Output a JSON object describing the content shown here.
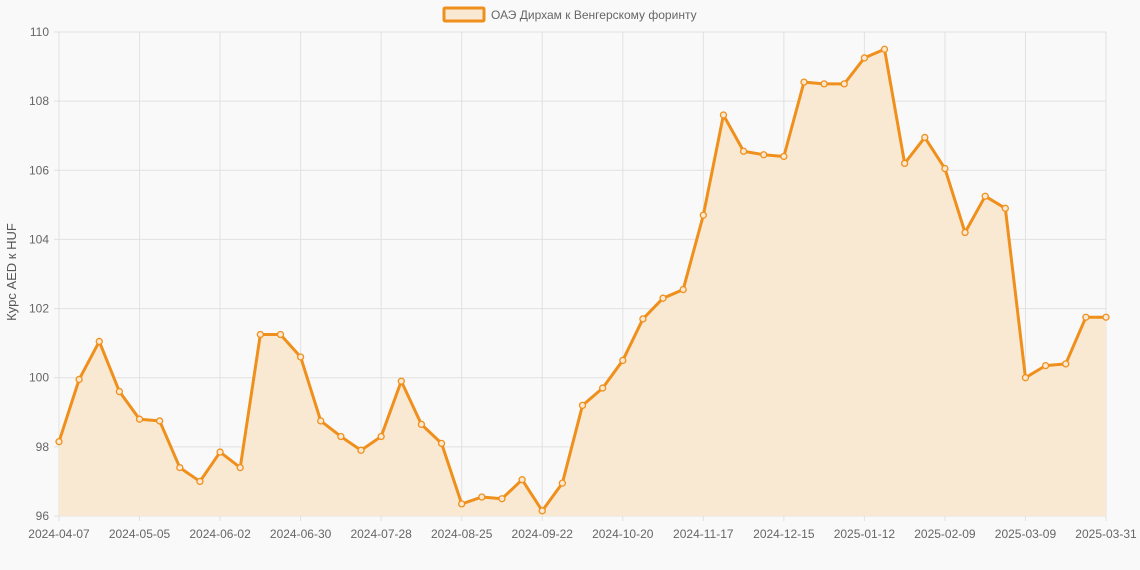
{
  "chart_data": {
    "type": "area",
    "title": "",
    "xlabel": "",
    "ylabel": "Курс AED к HUF",
    "legend": {
      "position": "top",
      "entries": [
        "ОАЭ Дирхам к Венгерскому форинту"
      ]
    },
    "grid": true,
    "ylim": [
      96,
      110
    ],
    "y_ticks": [
      96,
      98,
      100,
      102,
      104,
      106,
      108,
      110
    ],
    "x_tick_labels": [
      "2024-04-07",
      "2024-05-05",
      "2024-06-02",
      "2024-06-30",
      "2024-07-28",
      "2024-08-25",
      "2024-09-22",
      "2024-10-20",
      "2024-11-17",
      "2024-12-15",
      "2025-01-12",
      "2025-02-09",
      "2025-03-09",
      "2025-03-31"
    ],
    "x_tick_positions": [
      0,
      4,
      8,
      12,
      16,
      20,
      24,
      28,
      32,
      36,
      40,
      44,
      48,
      52
    ],
    "series": [
      {
        "name": "ОАЭ Дирхам к Венгерскому форинту",
        "color": "#f0901c",
        "fill": "#f9e8d2",
        "values": [
          98.15,
          99.95,
          101.05,
          99.6,
          98.8,
          98.75,
          97.4,
          97.0,
          97.85,
          97.4,
          101.25,
          101.25,
          100.6,
          98.75,
          98.3,
          97.9,
          98.3,
          99.9,
          98.65,
          98.1,
          96.35,
          96.55,
          96.5,
          97.05,
          96.15,
          96.95,
          99.2,
          99.7,
          100.5,
          101.7,
          102.3,
          102.55,
          104.7,
          107.6,
          106.55,
          106.45,
          106.4,
          108.55,
          108.5,
          108.5,
          109.25,
          109.5,
          106.2,
          106.95,
          106.05,
          104.2,
          105.25,
          104.9,
          100.0,
          100.35,
          100.4,
          101.75,
          101.75
        ]
      }
    ]
  }
}
